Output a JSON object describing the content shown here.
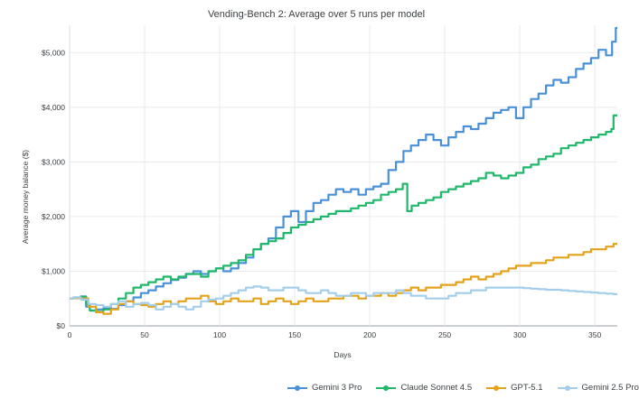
{
  "chart_data": {
    "type": "line",
    "title": "Vending-Bench 2: Average over 5 runs per model",
    "xlabel": "Days",
    "ylabel": "Average money balance ($)",
    "xlim": [
      0,
      365
    ],
    "ylim": [
      0,
      5500
    ],
    "x_ticks": [
      0,
      50,
      100,
      150,
      200,
      250,
      300,
      350
    ],
    "x_tick_labels": [
      "0",
      "50",
      "100",
      "150",
      "200",
      "250",
      "300",
      "350"
    ],
    "y_ticks": [
      0,
      1000,
      2000,
      3000,
      4000,
      5000
    ],
    "y_tick_labels": [
      "$0",
      "$1,000",
      "$2,000",
      "$3,000",
      "$4,000",
      "$5,000"
    ],
    "grid": true,
    "legend_position": "bottom-right",
    "series": [
      {
        "name": "Gemini 3 Pro",
        "color": "#4a90d9",
        "x": [
          0,
          5,
          10,
          12,
          15,
          20,
          25,
          30,
          35,
          40,
          45,
          50,
          55,
          60,
          65,
          70,
          75,
          80,
          85,
          90,
          95,
          100,
          105,
          110,
          115,
          120,
          125,
          130,
          135,
          140,
          145,
          150,
          155,
          160,
          165,
          170,
          175,
          180,
          185,
          190,
          195,
          200,
          205,
          210,
          215,
          220,
          225,
          230,
          235,
          240,
          245,
          250,
          255,
          260,
          265,
          270,
          275,
          280,
          285,
          290,
          295,
          300,
          305,
          310,
          315,
          320,
          325,
          330,
          335,
          340,
          345,
          350,
          355,
          360,
          363,
          365
        ],
        "y": [
          500,
          520,
          540,
          350,
          280,
          300,
          330,
          310,
          380,
          450,
          520,
          600,
          650,
          720,
          780,
          840,
          880,
          950,
          1000,
          950,
          1000,
          1050,
          1000,
          1050,
          1150,
          1250,
          1400,
          1500,
          1600,
          1800,
          2000,
          2100,
          1900,
          2100,
          2250,
          2300,
          2400,
          2500,
          2450,
          2500,
          2400,
          2500,
          2550,
          2600,
          2850,
          3000,
          3200,
          3300,
          3400,
          3500,
          3400,
          3300,
          3450,
          3550,
          3650,
          3600,
          3700,
          3800,
          3900,
          3950,
          4000,
          3800,
          4000,
          4150,
          4250,
          4400,
          4500,
          4450,
          4550,
          4700,
          4800,
          4900,
          5050,
          4950,
          5200,
          5450
        ]
      },
      {
        "name": "Claude Sonnet 4.5",
        "color": "#1fb86a",
        "x": [
          0,
          5,
          10,
          12,
          15,
          20,
          25,
          30,
          35,
          40,
          45,
          50,
          55,
          60,
          65,
          70,
          75,
          80,
          85,
          90,
          95,
          100,
          105,
          110,
          115,
          120,
          125,
          130,
          135,
          140,
          145,
          150,
          155,
          160,
          165,
          170,
          175,
          180,
          185,
          190,
          195,
          200,
          205,
          210,
          215,
          220,
          224,
          226,
          230,
          235,
          240,
          245,
          250,
          255,
          260,
          265,
          270,
          275,
          280,
          285,
          290,
          295,
          300,
          305,
          310,
          315,
          320,
          325,
          330,
          335,
          340,
          345,
          350,
          355,
          360,
          362,
          363,
          365
        ],
        "y": [
          500,
          510,
          530,
          400,
          280,
          260,
          300,
          400,
          500,
          600,
          700,
          750,
          800,
          850,
          900,
          850,
          900,
          950,
          950,
          900,
          1000,
          1050,
          1100,
          1150,
          1200,
          1300,
          1400,
          1500,
          1550,
          1600,
          1700,
          1800,
          1850,
          1900,
          1950,
          2000,
          2050,
          2100,
          2100,
          2150,
          2200,
          2250,
          2300,
          2400,
          2450,
          2500,
          2600,
          2100,
          2200,
          2250,
          2300,
          2350,
          2450,
          2500,
          2550,
          2600,
          2650,
          2700,
          2800,
          2750,
          2700,
          2750,
          2800,
          2900,
          2950,
          3050,
          3100,
          3150,
          3250,
          3300,
          3350,
          3400,
          3450,
          3500,
          3550,
          3600,
          3850,
          3850
        ]
      },
      {
        "name": "GPT-5.1",
        "color": "#e3a21a",
        "x": [
          0,
          5,
          10,
          15,
          20,
          25,
          30,
          35,
          40,
          45,
          50,
          55,
          60,
          65,
          70,
          75,
          80,
          85,
          90,
          95,
          100,
          105,
          110,
          115,
          120,
          125,
          130,
          135,
          140,
          145,
          150,
          155,
          160,
          165,
          170,
          175,
          180,
          185,
          190,
          195,
          200,
          205,
          210,
          215,
          220,
          225,
          230,
          235,
          240,
          245,
          250,
          255,
          260,
          265,
          270,
          275,
          280,
          285,
          290,
          295,
          300,
          305,
          310,
          315,
          320,
          325,
          330,
          335,
          340,
          345,
          350,
          355,
          360,
          365
        ],
        "y": [
          500,
          510,
          500,
          350,
          250,
          220,
          300,
          400,
          450,
          400,
          380,
          350,
          400,
          450,
          400,
          450,
          500,
          500,
          550,
          450,
          400,
          450,
          500,
          450,
          450,
          500,
          400,
          450,
          500,
          450,
          400,
          450,
          500,
          450,
          450,
          500,
          500,
          550,
          550,
          500,
          550,
          550,
          600,
          550,
          600,
          650,
          700,
          650,
          700,
          700,
          750,
          750,
          800,
          850,
          900,
          850,
          900,
          950,
          1000,
          1050,
          1100,
          1100,
          1150,
          1150,
          1200,
          1250,
          1250,
          1300,
          1300,
          1350,
          1400,
          1400,
          1450,
          1500
        ]
      },
      {
        "name": "Gemini 2.5 Pro",
        "color": "#a4cdea",
        "x": [
          0,
          5,
          10,
          15,
          20,
          25,
          30,
          35,
          40,
          45,
          50,
          55,
          60,
          65,
          70,
          75,
          80,
          85,
          90,
          95,
          100,
          105,
          110,
          115,
          120,
          125,
          130,
          135,
          140,
          145,
          150,
          155,
          160,
          165,
          170,
          175,
          180,
          185,
          190,
          195,
          200,
          205,
          210,
          215,
          220,
          225,
          230,
          235,
          240,
          245,
          250,
          255,
          260,
          265,
          270,
          275,
          280,
          285,
          290,
          295,
          300,
          305,
          310,
          315,
          320,
          325,
          330,
          335,
          340,
          345,
          350,
          355,
          360,
          365
        ],
        "y": [
          500,
          520,
          480,
          400,
          380,
          350,
          400,
          450,
          350,
          400,
          420,
          380,
          300,
          350,
          400,
          350,
          300,
          350,
          450,
          480,
          500,
          550,
          600,
          650,
          700,
          720,
          700,
          650,
          650,
          700,
          700,
          650,
          600,
          600,
          650,
          600,
          550,
          550,
          600,
          600,
          550,
          600,
          600,
          600,
          650,
          600,
          550,
          550,
          500,
          500,
          500,
          550,
          600,
          600,
          650,
          650,
          700,
          700,
          700,
          700,
          700,
          690,
          680,
          670,
          660,
          660,
          650,
          640,
          630,
          620,
          610,
          600,
          590,
          580
        ]
      }
    ]
  }
}
